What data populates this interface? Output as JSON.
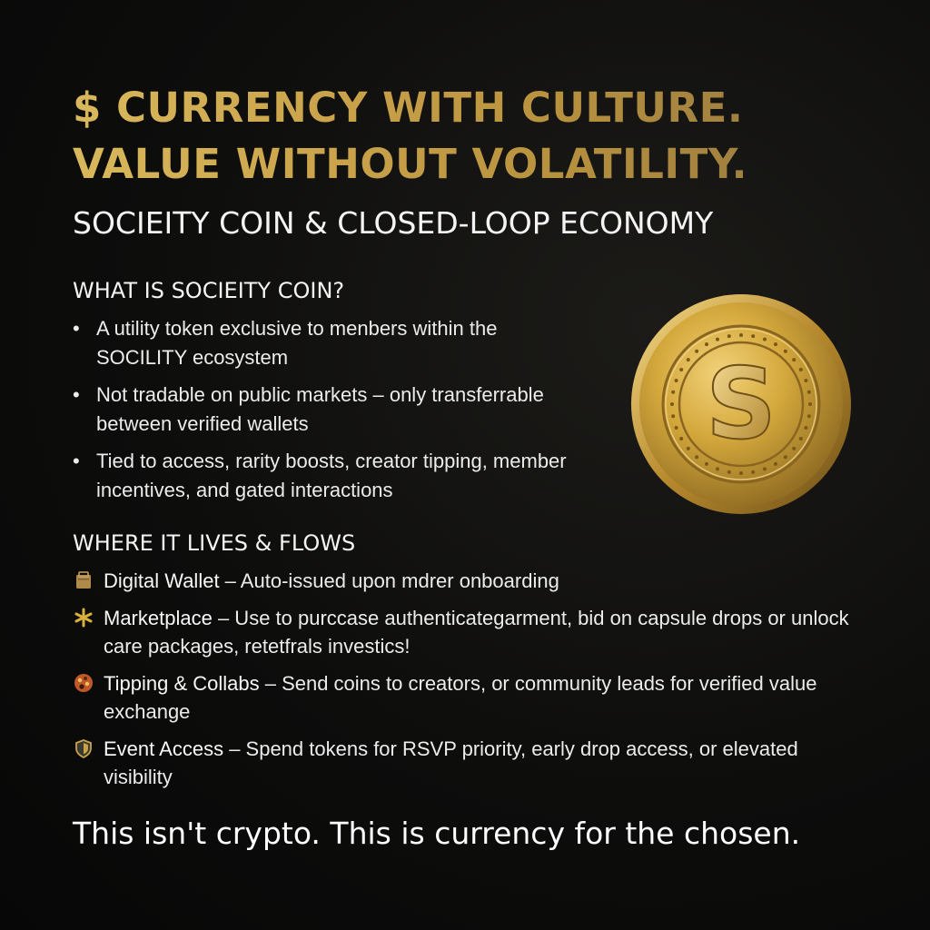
{
  "headline": {
    "line1": "$ CURRENCY WITH CULTURE.",
    "line2": "VALUE WITHOUT VOLATILITY."
  },
  "subtitle": "SOCIEITY COIN & CLOSED-LOOP ECONOMY",
  "what_is": {
    "heading": "WHAT IS SOCIEITY COIN?",
    "bullets": [
      "A utility token exclusive to menbers within the SOCILITY ecosystem",
      "Not tradable on public markets – only transferrable between verified wallets",
      "Tied to access, rarity boosts, creator tipping, member incentives, and gated interactions"
    ]
  },
  "flows": {
    "heading": "WHERE IT LIVES & FLOWS",
    "items": [
      {
        "icon": "wallet-icon",
        "name": "Digital Wallet",
        "desc": " – Auto-issued upon mdrer onboarding"
      },
      {
        "icon": "sparkle-icon",
        "name": "Marketplace",
        "desc": " – Use to purccase authenticategarment, bid on capsule drops or unlock care packages, retetfrals investics!"
      },
      {
        "icon": "palette-icon",
        "name": "Tipping & Collabs",
        "desc": " – Send coins to creators, or community leads for verified value exchange"
      },
      {
        "icon": "shield-icon",
        "name": "Event Access",
        "desc": " – Spend tokens for RSVP priority, early drop access, or elevated visibility"
      }
    ]
  },
  "closing": "This isn't crypto. This is currency for the chosen.",
  "coin": {
    "letter": "S"
  },
  "colors": {
    "gold": "#c9a24a",
    "background": "#0b0b0a",
    "text": "#f2f2f2"
  }
}
